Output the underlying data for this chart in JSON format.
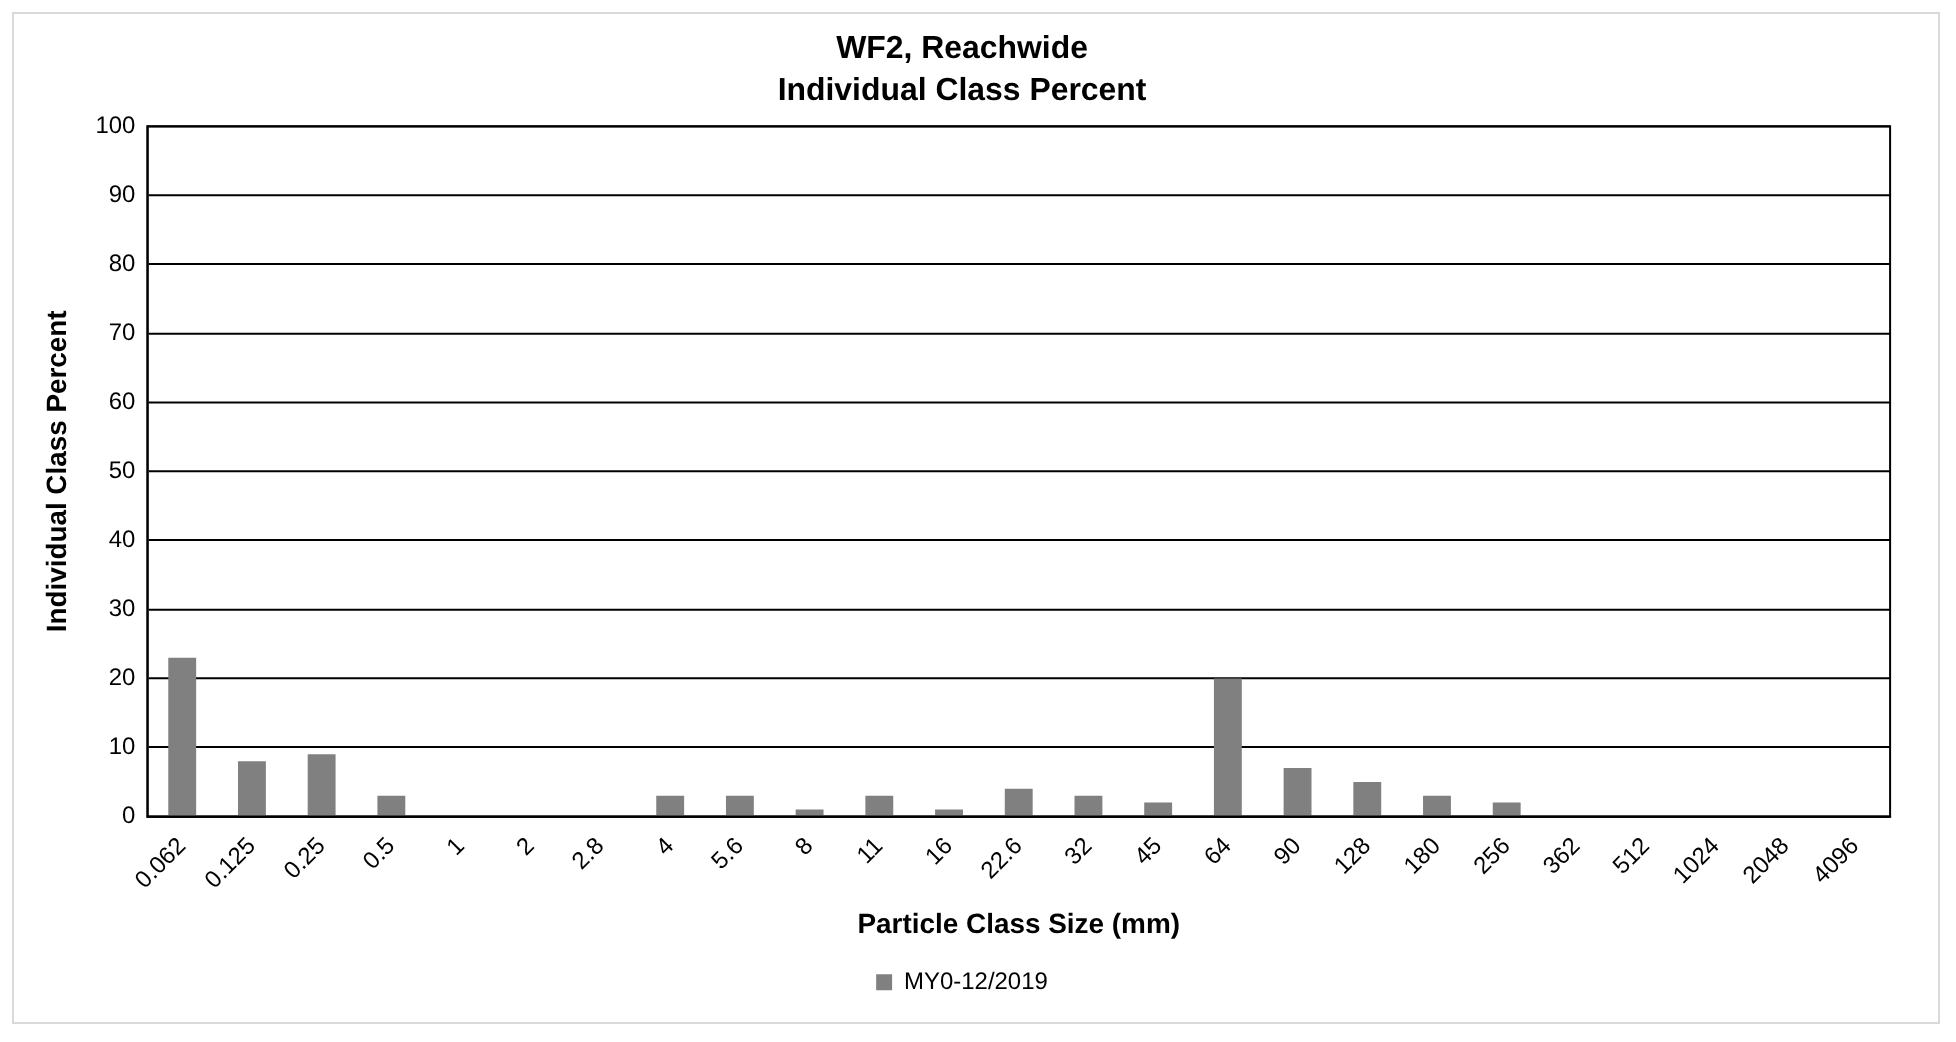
{
  "chart_data": {
    "type": "bar",
    "title": "WF2, Reachwide",
    "subtitle": "Individual Class Percent",
    "xlabel": "Particle Class Size (mm)",
    "ylabel": "Individual Class Percent",
    "categories": [
      "0.062",
      "0.125",
      "0.25",
      "0.5",
      "1",
      "2",
      "2.8",
      "4",
      "5.6",
      "8",
      "11",
      "16",
      "22.6",
      "32",
      "45",
      "64",
      "90",
      "128",
      "180",
      "256",
      "362",
      "512",
      "1024",
      "2048",
      "4096"
    ],
    "series": [
      {
        "name": "MY0-12/2019",
        "color": "#808080",
        "values": [
          23,
          8,
          9,
          3,
          0,
          0,
          0,
          3,
          3,
          1,
          3,
          1,
          4,
          3,
          2,
          20,
          7,
          5,
          3,
          2,
          0,
          0,
          0,
          0,
          0
        ]
      }
    ],
    "ylim": [
      0,
      100
    ],
    "yticks": [
      0,
      10,
      20,
      30,
      40,
      50,
      60,
      70,
      80,
      90,
      100
    ],
    "grid": "y",
    "legend": "bottom"
  }
}
